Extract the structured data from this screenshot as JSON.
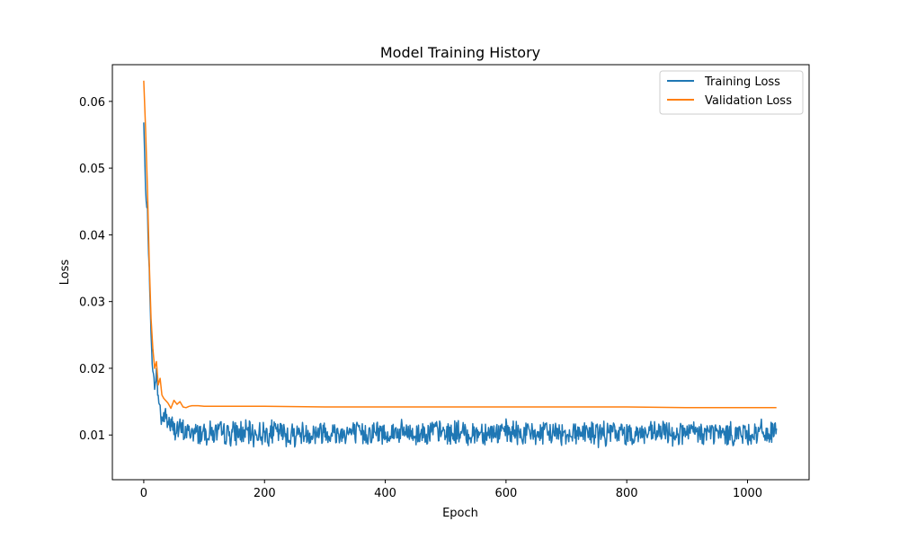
{
  "chart_data": {
    "type": "line",
    "title": "Model Training History",
    "xlabel": "Epoch",
    "ylabel": "Loss",
    "xlim": [
      -52,
      1102
    ],
    "ylim": [
      0.0033,
      0.0655
    ],
    "xticks": [
      0,
      200,
      400,
      600,
      800,
      1000
    ],
    "yticks": [
      0.01,
      0.02,
      0.03,
      0.04,
      0.05,
      0.06
    ],
    "ytick_labels": [
      "0.01",
      "0.02",
      "0.03",
      "0.04",
      "0.05",
      "0.06"
    ],
    "legend_position": "upper right",
    "grid": false,
    "series": [
      {
        "name": "Training Loss",
        "color": "#1f77b4",
        "x": [
          0,
          3,
          6,
          9,
          12,
          15,
          18,
          21,
          24,
          27,
          30,
          35,
          40,
          45,
          50,
          60,
          70,
          80,
          90,
          100,
          120,
          140,
          160,
          180,
          200,
          220,
          240,
          260,
          280,
          300,
          320,
          340,
          360,
          380,
          400,
          420,
          440,
          450,
          460,
          480,
          500,
          520,
          540,
          560,
          580,
          600,
          620,
          640,
          660,
          680,
          700,
          720,
          740,
          760,
          780,
          800,
          820,
          840,
          860,
          880,
          900,
          920,
          940,
          960,
          980,
          1000,
          1020,
          1040,
          1048
        ],
        "values": [
          0.0568,
          0.0463,
          0.0437,
          0.0345,
          0.0254,
          0.0192,
          0.0175,
          0.0192,
          0.0158,
          0.0137,
          0.0124,
          0.013,
          0.0121,
          0.0115,
          0.011,
          0.0107,
          0.0105,
          0.0104,
          0.0103,
          0.0104,
          0.0103,
          0.0102,
          0.0104,
          0.0101,
          0.0103,
          0.0105,
          0.01,
          0.0103,
          0.0102,
          0.0106,
          0.0102,
          0.0104,
          0.0101,
          0.0105,
          0.0102,
          0.0104,
          0.0103,
          0.01,
          0.0104,
          0.0106,
          0.0102,
          0.0104,
          0.0101,
          0.0105,
          0.0103,
          0.0104,
          0.0102,
          0.0103,
          0.0101,
          0.0104,
          0.0102,
          0.0105,
          0.0103,
          0.0101,
          0.0104,
          0.0102,
          0.0103,
          0.0101,
          0.0104,
          0.0102,
          0.0103,
          0.0102,
          0.0104,
          0.0101,
          0.0103,
          0.0102,
          0.0104,
          0.0102,
          0.0103
        ],
        "noise": 0.0016
      },
      {
        "name": "Validation Loss",
        "color": "#ff7f0e",
        "x": [
          0,
          3,
          6,
          9,
          12,
          15,
          18,
          21,
          24,
          27,
          30,
          33,
          36,
          40,
          45,
          50,
          55,
          60,
          65,
          70,
          75,
          80,
          90,
          100,
          150,
          200,
          300,
          400,
          500,
          600,
          700,
          800,
          900,
          1000,
          1048
        ],
        "values": [
          0.0631,
          0.056,
          0.047,
          0.036,
          0.0275,
          0.023,
          0.02,
          0.021,
          0.0175,
          0.0185,
          0.016,
          0.0155,
          0.0152,
          0.0148,
          0.014,
          0.0152,
          0.0146,
          0.015,
          0.0142,
          0.0141,
          0.0143,
          0.0144,
          0.0144,
          0.0143,
          0.0143,
          0.0143,
          0.0142,
          0.0142,
          0.0142,
          0.0142,
          0.0142,
          0.0142,
          0.0141,
          0.0141,
          0.0141
        ]
      }
    ]
  }
}
